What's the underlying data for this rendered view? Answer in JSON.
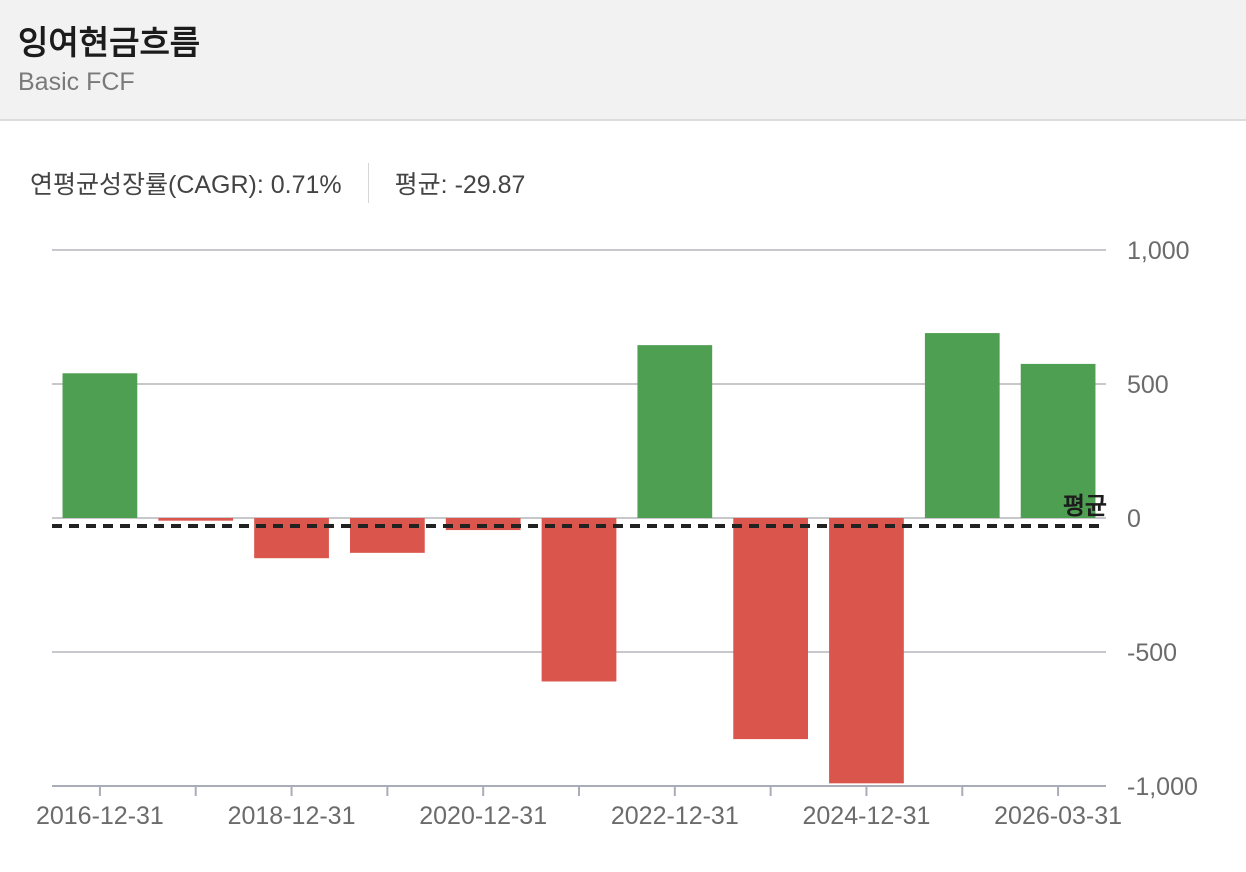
{
  "header": {
    "title": "잉여현금흐름",
    "subtitle": "Basic FCF"
  },
  "stats": {
    "cagr": "연평균성장률(CAGR): 0.71%",
    "average": "평균: -29.87"
  },
  "colors": {
    "positive": "#4e9f52",
    "negative": "#da554b",
    "average_line": "#222222"
  },
  "chart_data": {
    "type": "bar",
    "categories": [
      "2016-12-31",
      "2017-12-31",
      "2018-12-31",
      "2019-12-31",
      "2020-12-31",
      "2021-12-31",
      "2022-12-31",
      "2023-12-31",
      "2024-12-31",
      "2025-12-31",
      "2026-03-31"
    ],
    "values": [
      540,
      -10,
      -150,
      -130,
      -45,
      -610,
      645,
      -825,
      -990,
      690,
      575
    ],
    "x_tick_labels": [
      "2016-12-31",
      "2018-12-31",
      "2020-12-31",
      "2022-12-31",
      "2024-12-31",
      "2026-03-31"
    ],
    "y_ticks": [
      1000,
      500,
      0,
      -500,
      -1000
    ],
    "y_tick_labels": [
      "1,000",
      "500",
      "0",
      "-500",
      "-1,000"
    ],
    "ylim": [
      -1000,
      1000
    ],
    "average": -29.87,
    "average_label": "평균",
    "grid": true
  }
}
